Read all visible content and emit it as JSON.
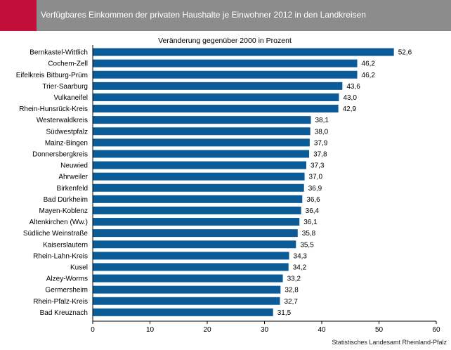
{
  "header": {
    "title": "Verfügbares Einkommen der privaten Haushalte je Einwohner 2012 in den Landkreisen"
  },
  "source": "Statistisches Landesamt Rheinland-Pfalz",
  "colors": {
    "bar": "#0b5b98",
    "accent": "#c20e3a",
    "header": "#8c8c8c"
  },
  "chart_data": {
    "type": "bar",
    "orientation": "horizontal",
    "title": "Veränderung gegenüber 2000 in Prozent",
    "categories": [
      "Bernkastel-Wittlich",
      "Cochem-Zell",
      "Eifelkreis Bitburg-Prüm",
      "Trier-Saarburg",
      "Vulkaneifel",
      "Rhein-Hunsrück-Kreis",
      "Westerwaldkreis",
      "Südwestpfalz",
      "Mainz-Bingen",
      "Donnersbergkreis",
      "Neuwied",
      "Ahrweiler",
      "Birkenfeld",
      "Bad Dürkheim",
      "Mayen-Koblenz",
      "Altenkirchen (Ww.)",
      "Südliche Weinstraße",
      "Kaiserslautern",
      "Rhein-Lahn-Kreis",
      "Kusel",
      "Alzey-Worms",
      "Germersheim",
      "Rhein-Pfalz-Kreis",
      "Bad Kreuznach"
    ],
    "values": [
      52.6,
      46.2,
      46.2,
      43.6,
      43.0,
      42.9,
      38.1,
      38.0,
      37.9,
      37.8,
      37.3,
      37.0,
      36.9,
      36.6,
      36.4,
      36.1,
      35.8,
      35.5,
      34.3,
      34.2,
      33.2,
      32.8,
      32.7,
      31.5
    ],
    "value_labels": [
      "52,6",
      "46,2",
      "46,2",
      "43,6",
      "43,0",
      "42,9",
      "38,1",
      "38,0",
      "37,9",
      "37,8",
      "37,3",
      "37,0",
      "36,9",
      "36,6",
      "36,4",
      "36,1",
      "35,8",
      "35,5",
      "34,3",
      "34,2",
      "33,2",
      "32,8",
      "32,7",
      "31,5"
    ],
    "xlim": [
      0,
      60
    ],
    "xticks": [
      0,
      10,
      20,
      30,
      40,
      50,
      60
    ],
    "xtick_labels": [
      "0",
      "10",
      "20",
      "30",
      "40",
      "50",
      "60"
    ],
    "grid": false,
    "legend": false
  }
}
